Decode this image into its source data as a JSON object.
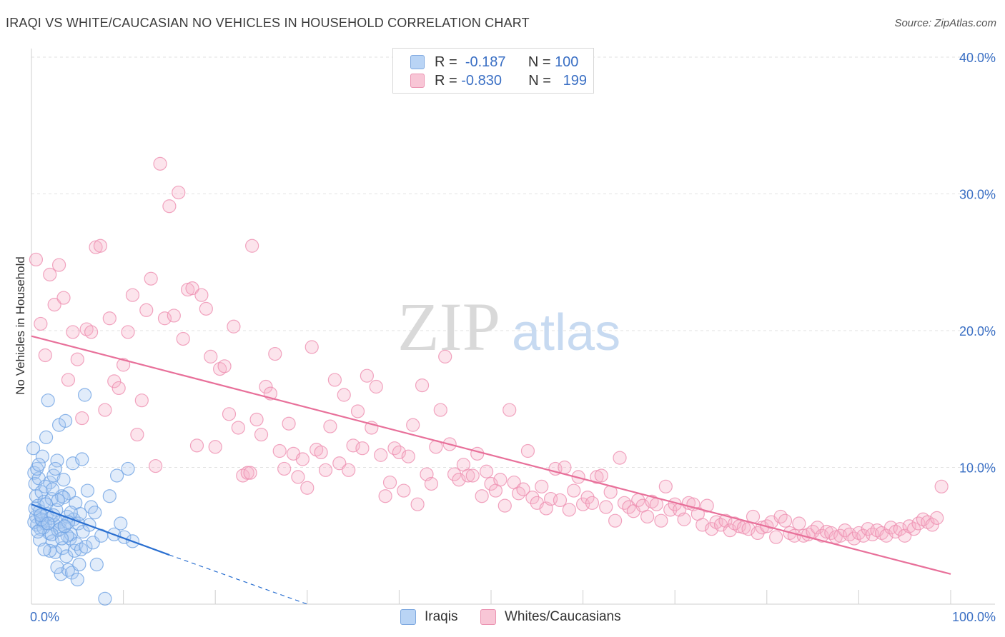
{
  "title": "IRAQI VS WHITE/CAUCASIAN NO VEHICLES IN HOUSEHOLD CORRELATION CHART",
  "source": "Source: ZipAtlas.com",
  "watermark": {
    "zip": "ZIP",
    "atlas": "atlas"
  },
  "legend": {
    "rows": [
      {
        "r_label": "R =",
        "r_value": "-0.187",
        "n_label": "N =",
        "n_value": "100",
        "color": "#a8c8f0"
      },
      {
        "r_label": "R =",
        "r_value": "-0.830",
        "n_label": "N =",
        "n_value": "199",
        "color": "#f5b3c8"
      }
    ]
  },
  "bottom_legend": {
    "iraqis": "Iraqis",
    "whites": "Whites/Caucasians"
  },
  "chart_data": {
    "type": "scatter",
    "title": "IRAQI VS WHITE/CAUCASIAN NO VEHICLES IN HOUSEHOLD CORRELATION CHART",
    "xlabel": "",
    "ylabel": "No Vehicles in Household",
    "xlim": [
      0,
      100
    ],
    "ylim": [
      0,
      40
    ],
    "x_tick_labels": [
      "0.0%",
      "100.0%"
    ],
    "y_tick_labels": [
      "10.0%",
      "20.0%",
      "30.0%",
      "40.0%"
    ],
    "y_ticks": [
      10,
      20,
      30,
      40
    ],
    "grid": true,
    "colors": {
      "iraqis": "#6fa8e8",
      "whites": "#f08aab",
      "iraqis_line": "#2a6fd0",
      "whites_line": "#e8709a",
      "tick_text": "#3a6fc4"
    },
    "series": [
      {
        "name": "Iraqis",
        "trend": {
          "x0": 0,
          "y0": 7.3,
          "x1": 15,
          "y1": 3.6,
          "dashed_to_x": 30,
          "dashed_to_y": 0
        },
        "points": [
          [
            0.2,
            11.4
          ],
          [
            0.3,
            9.6
          ],
          [
            0.4,
            8.8
          ],
          [
            0.5,
            7.9
          ],
          [
            0.5,
            6.4
          ],
          [
            0.6,
            5.8
          ],
          [
            0.7,
            7.2
          ],
          [
            0.8,
            9.2
          ],
          [
            0.9,
            6.8
          ],
          [
            1.0,
            5.5
          ],
          [
            1.1,
            8.2
          ],
          [
            1.2,
            6.1
          ],
          [
            1.2,
            10.8
          ],
          [
            1.4,
            7.5
          ],
          [
            1.5,
            5.9
          ],
          [
            1.6,
            12.2
          ],
          [
            1.7,
            6.6
          ],
          [
            1.8,
            14.9
          ],
          [
            1.9,
            5.2
          ],
          [
            2.0,
            8.9
          ],
          [
            2.1,
            6.3
          ],
          [
            2.2,
            7.7
          ],
          [
            2.3,
            4.6
          ],
          [
            2.4,
            9.4
          ],
          [
            2.5,
            5.8
          ],
          [
            2.6,
            3.8
          ],
          [
            2.7,
            6.9
          ],
          [
            2.8,
            10.5
          ],
          [
            2.9,
            5.4
          ],
          [
            3.0,
            13.1
          ],
          [
            3.1,
            6.0
          ],
          [
            3.2,
            2.2
          ],
          [
            3.3,
            7.9
          ],
          [
            3.4,
            4.1
          ],
          [
            3.5,
            9.1
          ],
          [
            3.6,
            5.7
          ],
          [
            3.7,
            13.4
          ],
          [
            3.8,
            3.5
          ],
          [
            3.9,
            6.4
          ],
          [
            4.0,
            2.5
          ],
          [
            4.1,
            8.1
          ],
          [
            4.2,
            4.8
          ],
          [
            4.3,
            5.1
          ],
          [
            4.4,
            2.3
          ],
          [
            4.5,
            10.3
          ],
          [
            4.6,
            6.2
          ],
          [
            4.7,
            3.9
          ],
          [
            4.8,
            7.4
          ],
          [
            4.9,
            4.4
          ],
          [
            5.0,
            1.8
          ],
          [
            5.1,
            5.9
          ],
          [
            5.2,
            2.9
          ],
          [
            5.3,
            6.6
          ],
          [
            5.4,
            4.0
          ],
          [
            5.5,
            10.6
          ],
          [
            5.6,
            5.3
          ],
          [
            5.8,
            15.3
          ],
          [
            5.9,
            4.2
          ],
          [
            6.1,
            8.3
          ],
          [
            6.3,
            5.8
          ],
          [
            6.5,
            7.1
          ],
          [
            6.7,
            4.5
          ],
          [
            6.9,
            6.7
          ],
          [
            7.1,
            2.9
          ],
          [
            7.6,
            5.0
          ],
          [
            8.0,
            0.4
          ],
          [
            8.5,
            7.9
          ],
          [
            9.0,
            5.1
          ],
          [
            9.3,
            9.4
          ],
          [
            9.7,
            5.9
          ],
          [
            10.1,
            4.9
          ],
          [
            10.5,
            9.9
          ],
          [
            0.3,
            6.0
          ],
          [
            0.6,
            9.9
          ],
          [
            0.9,
            4.7
          ],
          [
            1.3,
            5.6
          ],
          [
            1.6,
            7.3
          ],
          [
            2.0,
            3.9
          ],
          [
            2.4,
            6.5
          ],
          [
            2.8,
            2.7
          ],
          [
            3.1,
            5.5
          ],
          [
            3.5,
            7.8
          ],
          [
            3.9,
            5.0
          ],
          [
            4.3,
            6.7
          ],
          [
            0.4,
            7.0
          ],
          [
            0.7,
            5.3
          ],
          [
            1.1,
            6.2
          ],
          [
            1.5,
            8.6
          ],
          [
            2.2,
            5.1
          ],
          [
            2.6,
            9.9
          ],
          [
            3.3,
            4.8
          ],
          [
            4.0,
            6.0
          ],
          [
            1.0,
            6.5
          ],
          [
            1.8,
            5.9
          ],
          [
            2.9,
            7.6
          ],
          [
            0.8,
            10.2
          ],
          [
            1.4,
            4.0
          ],
          [
            2.3,
            8.4
          ],
          [
            3.6,
            5.7
          ],
          [
            11.0,
            4.6
          ]
        ]
      },
      {
        "name": "Whites/Caucasians",
        "trend": {
          "x0": 0,
          "y0": 19.6,
          "x1": 100,
          "y1": 2.2
        },
        "points": [
          [
            0.5,
            25.2
          ],
          [
            1.0,
            20.5
          ],
          [
            1.5,
            18.2
          ],
          [
            2.0,
            24.1
          ],
          [
            2.5,
            21.9
          ],
          [
            3.0,
            24.8
          ],
          [
            3.5,
            22.4
          ],
          [
            4.0,
            16.4
          ],
          [
            4.5,
            19.9
          ],
          [
            5.0,
            17.9
          ],
          [
            5.5,
            13.6
          ],
          [
            6.0,
            20.1
          ],
          [
            6.5,
            19.9
          ],
          [
            7.0,
            26.1
          ],
          [
            7.5,
            26.2
          ],
          [
            8.0,
            14.2
          ],
          [
            8.5,
            20.9
          ],
          [
            9.0,
            16.3
          ],
          [
            9.5,
            15.8
          ],
          [
            10.0,
            17.5
          ],
          [
            10.5,
            19.9
          ],
          [
            11.0,
            22.6
          ],
          [
            11.5,
            12.4
          ],
          [
            12.0,
            14.9
          ],
          [
            12.5,
            21.5
          ],
          [
            13.0,
            23.8
          ],
          [
            13.5,
            10.1
          ],
          [
            14.0,
            32.2
          ],
          [
            14.5,
            20.9
          ],
          [
            15.0,
            29.1
          ],
          [
            15.5,
            21.1
          ],
          [
            16.0,
            30.1
          ],
          [
            16.5,
            19.4
          ],
          [
            17.0,
            23.0
          ],
          [
            17.5,
            23.1
          ],
          [
            18.0,
            11.6
          ],
          [
            18.5,
            22.6
          ],
          [
            19.0,
            21.6
          ],
          [
            19.5,
            18.1
          ],
          [
            20.0,
            11.5
          ],
          [
            20.5,
            17.2
          ],
          [
            21.0,
            17.4
          ],
          [
            21.5,
            13.9
          ],
          [
            22.0,
            20.3
          ],
          [
            22.5,
            12.9
          ],
          [
            23.0,
            9.4
          ],
          [
            23.5,
            9.6
          ],
          [
            24.0,
            26.2
          ],
          [
            24.5,
            13.5
          ],
          [
            25.0,
            12.4
          ],
          [
            25.5,
            15.9
          ],
          [
            26.0,
            15.4
          ],
          [
            26.5,
            18.3
          ],
          [
            27.0,
            11.2
          ],
          [
            27.5,
            9.9
          ],
          [
            28.0,
            13.2
          ],
          [
            28.5,
            11.0
          ],
          [
            29.0,
            9.3
          ],
          [
            29.5,
            10.6
          ],
          [
            30.0,
            8.5
          ],
          [
            30.5,
            18.8
          ],
          [
            31.0,
            11.3
          ],
          [
            31.5,
            11.1
          ],
          [
            32.0,
            9.8
          ],
          [
            32.5,
            13.0
          ],
          [
            33.0,
            16.4
          ],
          [
            33.5,
            10.3
          ],
          [
            34.0,
            15.3
          ],
          [
            34.5,
            9.8
          ],
          [
            35.0,
            11.6
          ],
          [
            35.5,
            14.1
          ],
          [
            36.0,
            11.4
          ],
          [
            36.5,
            16.7
          ],
          [
            37.0,
            12.9
          ],
          [
            37.5,
            15.9
          ],
          [
            38.0,
            10.9
          ],
          [
            38.5,
            7.9
          ],
          [
            39.0,
            8.9
          ],
          [
            39.5,
            11.4
          ],
          [
            40.0,
            11.1
          ],
          [
            40.5,
            8.3
          ],
          [
            41.0,
            10.8
          ],
          [
            41.5,
            13.1
          ],
          [
            42.0,
            7.3
          ],
          [
            42.5,
            16.0
          ],
          [
            43.0,
            9.5
          ],
          [
            43.5,
            8.8
          ],
          [
            44.0,
            11.5
          ],
          [
            44.5,
            14.2
          ],
          [
            45.0,
            18.1
          ],
          [
            45.5,
            11.7
          ],
          [
            46.0,
            9.5
          ],
          [
            46.5,
            9.1
          ],
          [
            47.0,
            10.2
          ],
          [
            47.5,
            9.4
          ],
          [
            48.0,
            9.4
          ],
          [
            48.5,
            11.0
          ],
          [
            49.0,
            7.9
          ],
          [
            49.5,
            9.7
          ],
          [
            50.0,
            8.8
          ],
          [
            50.5,
            8.3
          ],
          [
            51.0,
            9.1
          ],
          [
            51.5,
            7.2
          ],
          [
            52.0,
            14.2
          ],
          [
            52.5,
            8.9
          ],
          [
            53.0,
            8.1
          ],
          [
            53.5,
            8.4
          ],
          [
            54.0,
            11.2
          ],
          [
            54.5,
            7.8
          ],
          [
            55.0,
            7.4
          ],
          [
            55.5,
            8.6
          ],
          [
            56.0,
            7.0
          ],
          [
            56.5,
            7.7
          ],
          [
            57.0,
            9.9
          ],
          [
            57.5,
            7.6
          ],
          [
            58.0,
            10.0
          ],
          [
            58.5,
            6.9
          ],
          [
            59.0,
            8.3
          ],
          [
            59.5,
            9.3
          ],
          [
            60.0,
            7.3
          ],
          [
            60.5,
            7.8
          ],
          [
            61.0,
            7.4
          ],
          [
            61.5,
            9.3
          ],
          [
            62.0,
            9.4
          ],
          [
            62.5,
            7.1
          ],
          [
            63.0,
            8.2
          ],
          [
            63.5,
            6.1
          ],
          [
            64.0,
            10.7
          ],
          [
            64.5,
            7.4
          ],
          [
            65.0,
            7.1
          ],
          [
            65.5,
            6.8
          ],
          [
            66.0,
            7.6
          ],
          [
            66.5,
            7.2
          ],
          [
            67.0,
            6.4
          ],
          [
            67.5,
            7.5
          ],
          [
            68.0,
            7.3
          ],
          [
            68.5,
            6.1
          ],
          [
            69.0,
            8.6
          ],
          [
            69.5,
            6.9
          ],
          [
            70.0,
            7.3
          ],
          [
            70.5,
            6.9
          ],
          [
            71.0,
            6.2
          ],
          [
            71.5,
            7.4
          ],
          [
            72.0,
            7.3
          ],
          [
            72.5,
            6.6
          ],
          [
            73.0,
            5.8
          ],
          [
            73.5,
            7.2
          ],
          [
            74.0,
            5.5
          ],
          [
            74.5,
            6.0
          ],
          [
            75.0,
            5.8
          ],
          [
            75.5,
            6.1
          ],
          [
            76.0,
            5.4
          ],
          [
            76.5,
            5.9
          ],
          [
            77.0,
            5.7
          ],
          [
            77.5,
            5.6
          ],
          [
            78.0,
            5.5
          ],
          [
            78.5,
            6.4
          ],
          [
            79.0,
            5.2
          ],
          [
            79.5,
            5.6
          ],
          [
            80.0,
            5.7
          ],
          [
            80.5,
            6.0
          ],
          [
            81.0,
            4.9
          ],
          [
            81.5,
            6.4
          ],
          [
            82.0,
            6.1
          ],
          [
            82.5,
            5.2
          ],
          [
            83.0,
            5.0
          ],
          [
            83.5,
            5.9
          ],
          [
            84.0,
            5.0
          ],
          [
            84.5,
            5.1
          ],
          [
            85.0,
            5.3
          ],
          [
            85.5,
            5.6
          ],
          [
            86.0,
            5.0
          ],
          [
            86.5,
            5.3
          ],
          [
            87.0,
            5.2
          ],
          [
            87.5,
            4.9
          ],
          [
            88.0,
            5.0
          ],
          [
            88.5,
            5.4
          ],
          [
            89.0,
            5.1
          ],
          [
            89.5,
            4.8
          ],
          [
            90.0,
            5.2
          ],
          [
            90.5,
            5.0
          ],
          [
            91.0,
            5.5
          ],
          [
            91.5,
            5.1
          ],
          [
            92.0,
            5.4
          ],
          [
            92.5,
            5.2
          ],
          [
            93.0,
            5.0
          ],
          [
            93.5,
            5.6
          ],
          [
            94.0,
            5.3
          ],
          [
            94.5,
            5.5
          ],
          [
            95.0,
            5.0
          ],
          [
            95.5,
            5.7
          ],
          [
            96.0,
            5.5
          ],
          [
            96.5,
            5.9
          ],
          [
            97.0,
            6.2
          ],
          [
            97.5,
            6.0
          ],
          [
            98.0,
            5.8
          ],
          [
            99.0,
            8.6
          ],
          [
            98.5,
            6.3
          ],
          [
            23.8,
            9.6
          ]
        ]
      }
    ]
  }
}
